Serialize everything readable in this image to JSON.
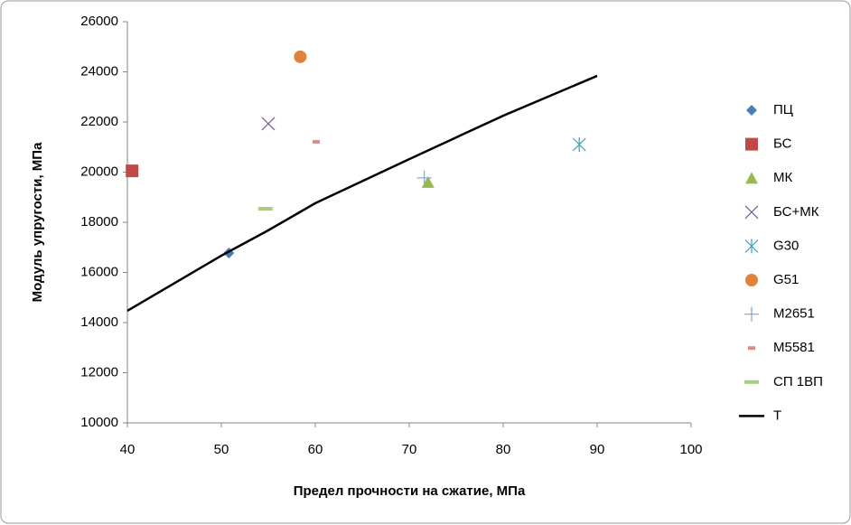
{
  "chart_data": {
    "type": "scatter",
    "x_label": "Предел прочности на сжатие, МПа",
    "y_label": "Модуль упругости, МПа",
    "xlim": [
      40,
      100
    ],
    "xticks": [
      40,
      50,
      60,
      70,
      80,
      90,
      100
    ],
    "ylim": [
      10000,
      26000
    ],
    "yticks": [
      10000,
      12000,
      14000,
      16000,
      18000,
      20000,
      22000,
      24000,
      26000
    ],
    "grid": false,
    "legend": "right",
    "series": [
      {
        "name": "ПЦ",
        "color": "#4a7ebb",
        "marker": "diamond",
        "x": [
          50.8
        ],
        "values": [
          16775
        ]
      },
      {
        "name": "БС",
        "color": "#be4b48",
        "marker": "square",
        "x": [
          40.5
        ],
        "values": [
          20050
        ]
      },
      {
        "name": "МК",
        "color": "#98b954",
        "marker": "triangle",
        "x": [
          72
        ],
        "values": [
          19590
        ]
      },
      {
        "name": "БС+МК",
        "color": "#7d60a0",
        "marker": "x",
        "x": [
          55
        ],
        "values": [
          21930
        ]
      },
      {
        "name": "G30",
        "color": "#46aac5",
        "marker": "asterisk",
        "x": [
          88.1
        ],
        "values": [
          21100
        ]
      },
      {
        "name": "G51",
        "color": "#e0823a",
        "marker": "circle",
        "x": [
          58.4
        ],
        "values": [
          24600
        ]
      },
      {
        "name": "M2651",
        "color": "#8aaad8",
        "marker": "plus",
        "x": [
          71.6
        ],
        "values": [
          19770
        ]
      },
      {
        "name": "M5581",
        "color": "#d98b88",
        "marker": "dash",
        "x": [
          60.1
        ],
        "values": [
          21210
        ]
      },
      {
        "name": "СП 1ВП",
        "color": "#a9cd85",
        "marker": "longdash",
        "x": [
          54.7
        ],
        "values": [
          18540
        ]
      },
      {
        "name": "Т",
        "color": "#000000",
        "marker": "line",
        "x": [
          40,
          50,
          55,
          60,
          70,
          80,
          90
        ],
        "values": [
          14470,
          16670,
          17680,
          18760,
          20520,
          22250,
          23840
        ]
      }
    ]
  }
}
